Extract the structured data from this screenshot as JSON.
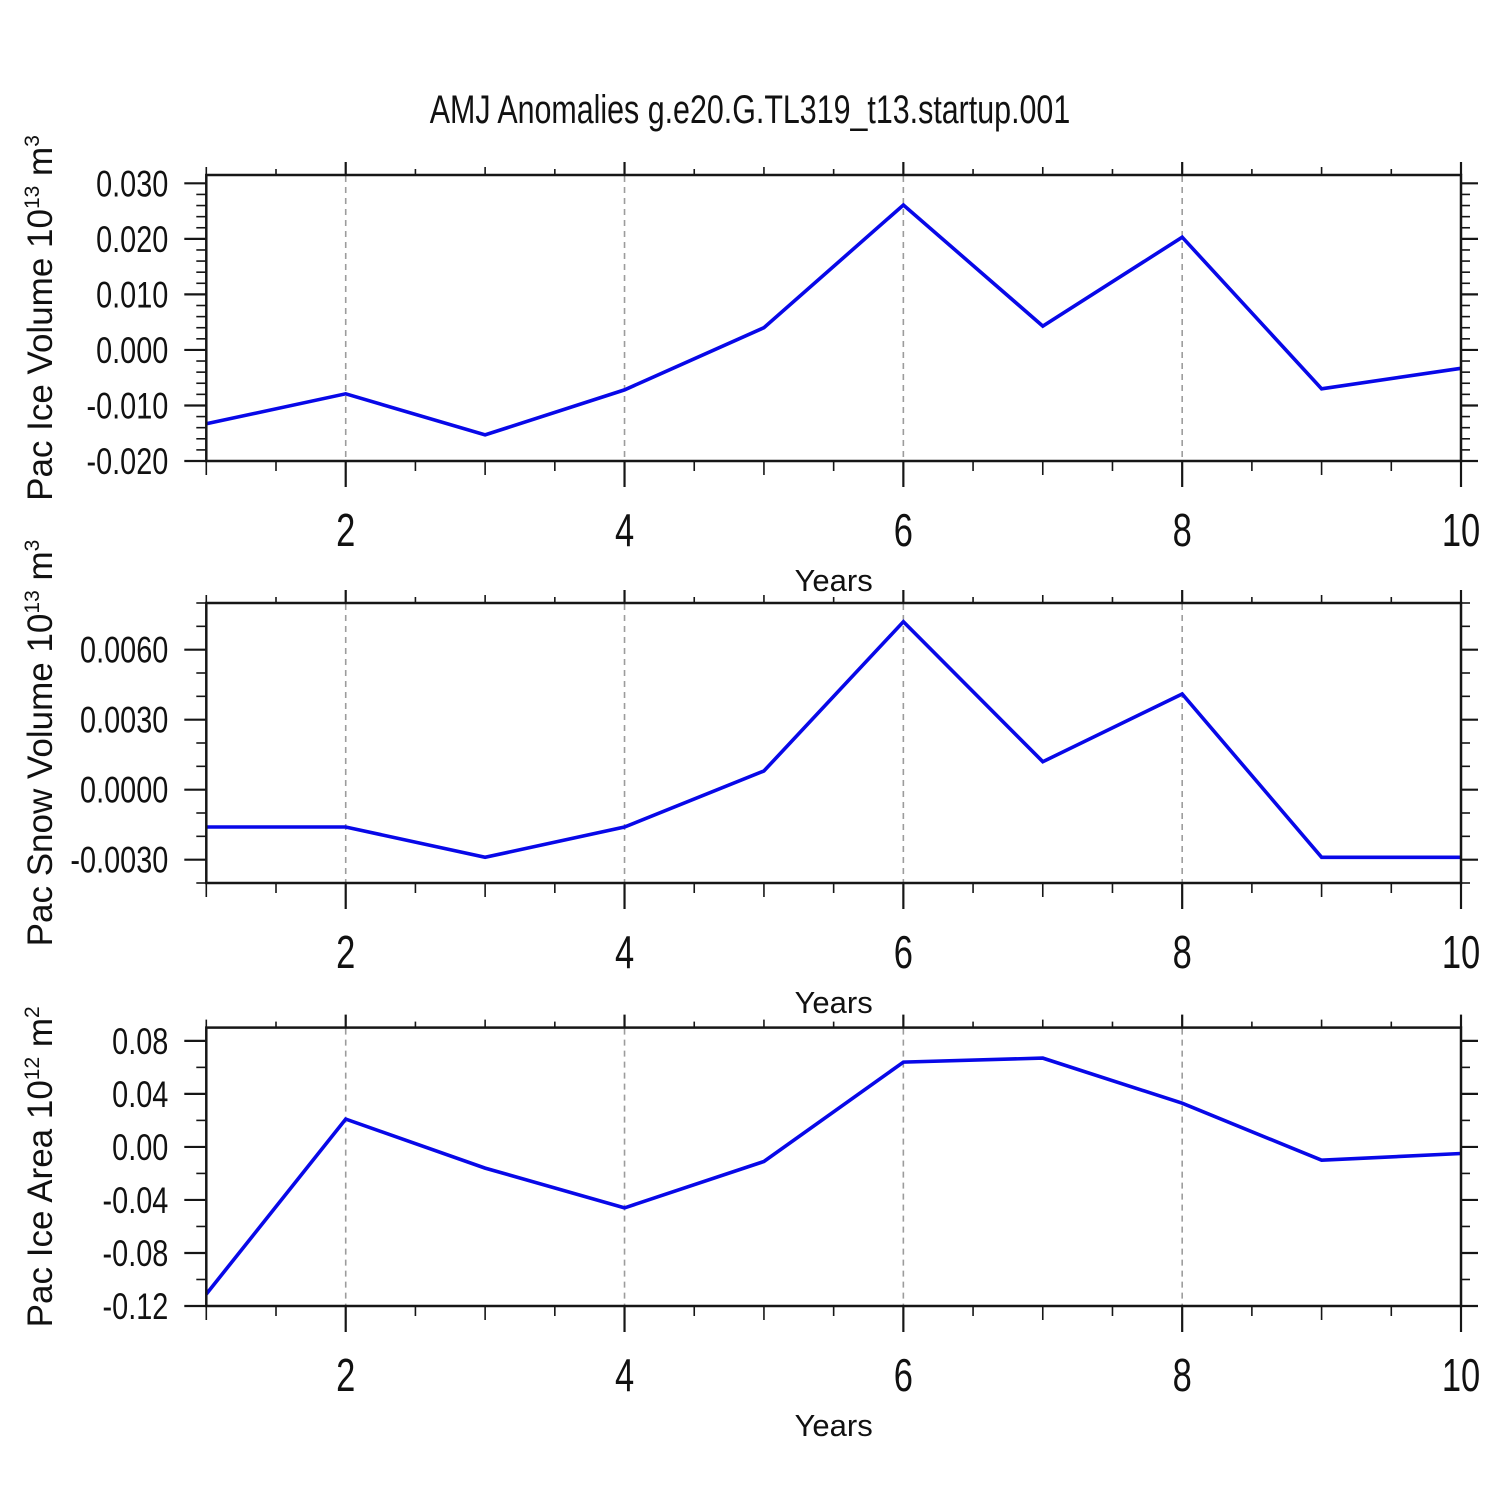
{
  "title": "AMJ Anomalies g.e20.G.TL319_t13.startup.001",
  "style": {
    "background": "#ffffff",
    "frame_color": "#161616",
    "tick_color": "#161616",
    "label_color": "#111111",
    "grid_color": "#9c9c9c"
  },
  "chart_data": [
    {
      "type": "line",
      "title": "",
      "xlabel": "Years",
      "ylabel": "Pac Ice Volume 10^13 m^3",
      "ylabel_parts": [
        {
          "t": "Pac Ice Volume 10"
        },
        {
          "sup": "13"
        },
        {
          "t": " m"
        },
        {
          "sup": "3"
        }
      ],
      "x": [
        1,
        2,
        3,
        4,
        5,
        6,
        7,
        8,
        9,
        10
      ],
      "values": [
        -0.0133,
        -0.0079,
        -0.0153,
        -0.0072,
        0.004,
        0.0261,
        0.0043,
        0.0203,
        -0.007,
        -0.0033
      ],
      "xlim": [
        1,
        10
      ],
      "ylim": [
        -0.02,
        0.0315
      ],
      "xticks_major": [
        2,
        4,
        6,
        8,
        10
      ],
      "xtick_labels": [
        "2",
        "4",
        "6",
        "8",
        "10"
      ],
      "xtick_minor_step": 0.5,
      "ytick_major": [
        0.03,
        0.02,
        0.01,
        0.0,
        -0.01,
        -0.02
      ],
      "ytick_labels": [
        "0.030",
        "0.020",
        "0.010",
        "0.000",
        "-0.010",
        "-0.020"
      ],
      "ytick_minor_step": 0.002,
      "gridlines_x": [
        2,
        4,
        6,
        8
      ],
      "grid_on": true,
      "legend": "none",
      "line_color": "#0808E8"
    },
    {
      "type": "line",
      "title": "",
      "xlabel": "Years",
      "ylabel": "Pac Snow Volume 10^13 m^3",
      "ylabel_parts": [
        {
          "t": "Pac Snow Volume 10"
        },
        {
          "sup": "13"
        },
        {
          "t": " m"
        },
        {
          "sup": "3"
        }
      ],
      "x": [
        1,
        2,
        3,
        4,
        5,
        6,
        7,
        8,
        9,
        10
      ],
      "values": [
        -0.0016,
        -0.0016,
        -0.0029,
        -0.0016,
        0.0008,
        0.0072,
        0.0012,
        0.0041,
        -0.0029,
        -0.0029
      ],
      "xlim": [
        1,
        10
      ],
      "ylim": [
        -0.004,
        0.008
      ],
      "xticks_major": [
        2,
        4,
        6,
        8,
        10
      ],
      "xtick_labels": [
        "2",
        "4",
        "6",
        "8",
        "10"
      ],
      "xtick_minor_step": 0.5,
      "ytick_major": [
        0.006,
        0.003,
        0.0,
        -0.003
      ],
      "ytick_labels": [
        "0.0060",
        "0.0030",
        "0.0000",
        "-0.0030"
      ],
      "ytick_minor_step": 0.001,
      "gridlines_x": [
        2,
        4,
        6,
        8
      ],
      "grid_on": true,
      "legend": "none",
      "line_color": "#0808E8"
    },
    {
      "type": "line",
      "title": "",
      "xlabel": "Years",
      "ylabel": "Pac Ice Area 10^12 m^2",
      "ylabel_parts": [
        {
          "t": "Pac Ice Area 10"
        },
        {
          "sup": "12"
        },
        {
          "t": " m"
        },
        {
          "sup": "2"
        }
      ],
      "x": [
        1,
        2,
        3,
        4,
        5,
        6,
        7,
        8,
        9,
        10
      ],
      "values": [
        -0.111,
        0.021,
        -0.016,
        -0.046,
        -0.011,
        0.064,
        0.067,
        0.033,
        -0.01,
        -0.005
      ],
      "xlim": [
        1,
        10
      ],
      "ylim": [
        -0.12,
        0.09
      ],
      "xticks_major": [
        2,
        4,
        6,
        8,
        10
      ],
      "xtick_labels": [
        "2",
        "4",
        "6",
        "8",
        "10"
      ],
      "xtick_minor_step": 0.5,
      "ytick_major": [
        0.08,
        0.04,
        0.0,
        -0.04,
        -0.08,
        -0.12
      ],
      "ytick_labels": [
        "0.08",
        "0.04",
        "0.00",
        "-0.04",
        "-0.08",
        "-0.12"
      ],
      "ytick_minor_step": 0.02,
      "gridlines_x": [
        2,
        4,
        6,
        8
      ],
      "grid_on": true,
      "legend": "none",
      "line_color": "#0808E8"
    }
  ]
}
